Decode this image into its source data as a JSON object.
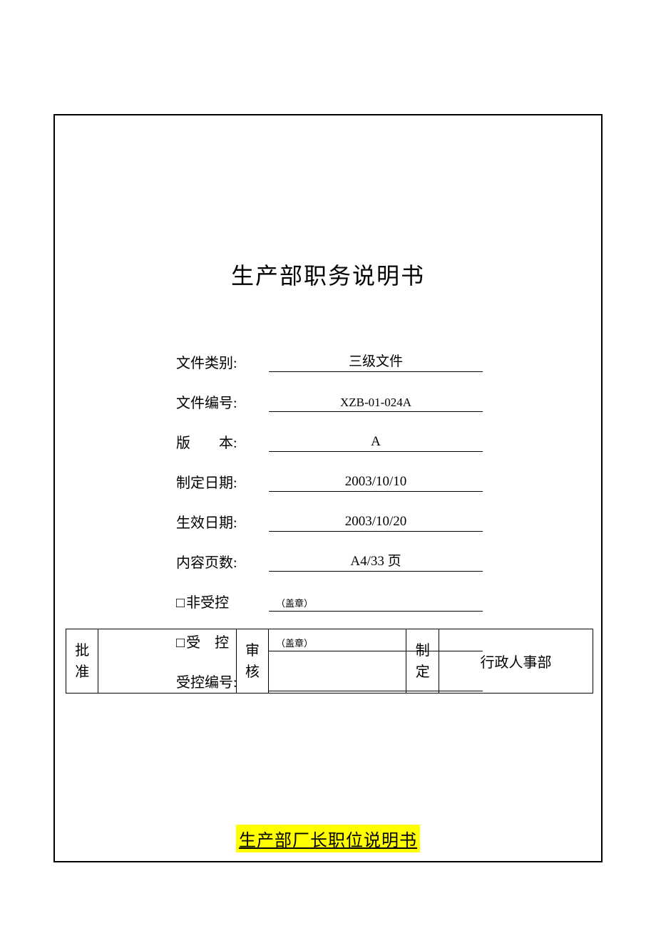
{
  "title": "生产部职务说明书",
  "fields": {
    "doc_type_label": "文件类别:",
    "doc_type_value": "三级文件",
    "doc_number_label": "文件编号:",
    "doc_number_value": "XZB-01-024A",
    "version_label": "版　　本:",
    "version_value": "A",
    "create_date_label": "制定日期:",
    "create_date_value": "2003/10/10",
    "effective_date_label": "生效日期:",
    "effective_date_value": "2003/10/20",
    "page_count_label": "内容页数:",
    "page_count_value": "A4/33 页",
    "uncontrolled_label": "非受控",
    "uncontrolled_stamp": "（盖章）",
    "controlled_label": "受　控",
    "controlled_stamp": "（盖章）",
    "controlled_number_label": "受控编号:",
    "controlled_number_value": ""
  },
  "approval": {
    "approve_label": "批准",
    "approve_value": "",
    "review_label": "审核",
    "review_value": "",
    "create_label": "制定",
    "create_value": "行政人事部"
  },
  "footer_title": "生产部厂长职位说明书",
  "colors": {
    "border": "#000000",
    "highlight": "#ffff00",
    "background": "#ffffff"
  }
}
